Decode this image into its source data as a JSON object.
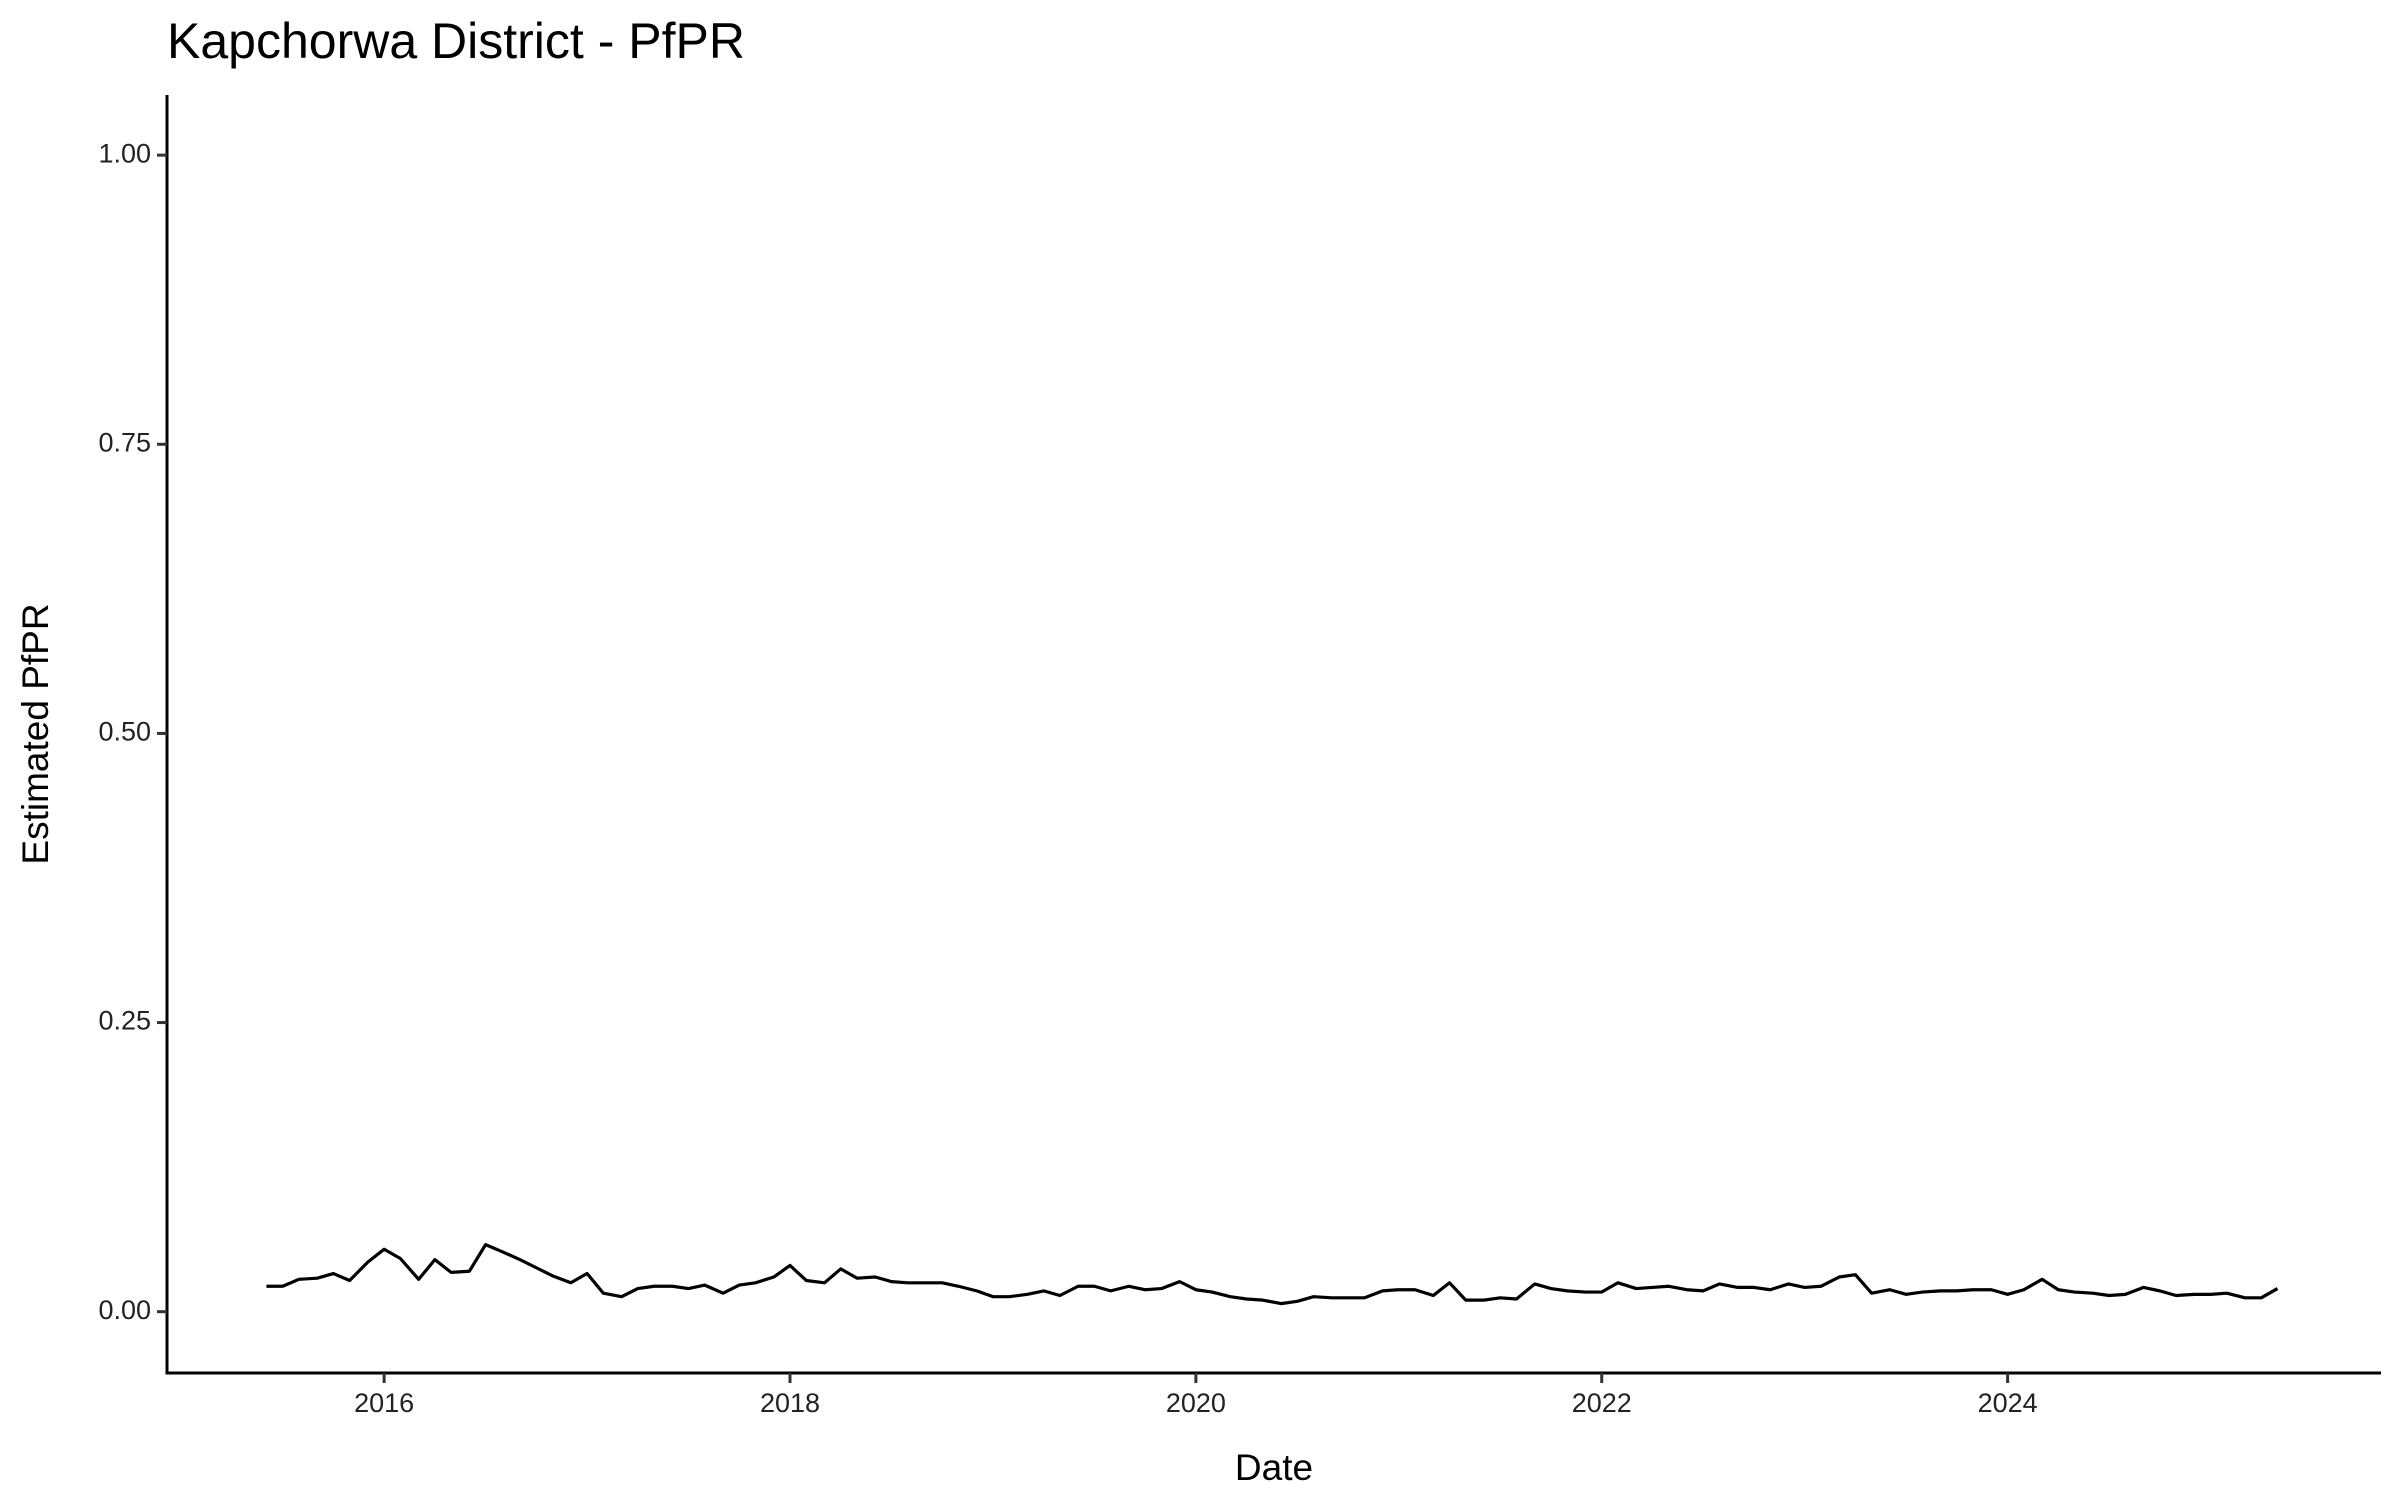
{
  "chart_data": {
    "type": "line",
    "title": "Kapchorwa District - PfPR",
    "x_label": "Date",
    "y_label": "Estimated PfPR",
    "xlim": [
      2014.93,
      2025.84
    ],
    "xticks": [
      2016,
      2018,
      2020,
      2022,
      2024
    ],
    "ylim": [
      -0.053,
      1.052
    ],
    "yticks": [
      {
        "value": 0,
        "label": "0.00"
      },
      {
        "value": 0.25,
        "label": "0.25"
      },
      {
        "value": 0.5,
        "label": "0.50"
      },
      {
        "value": 0.75,
        "label": "0.75"
      },
      {
        "value": 1,
        "label": "1.00"
      }
    ],
    "grid": false,
    "series": [
      {
        "color": "#000000",
        "x": [
          2015.42,
          2015.5,
          2015.58,
          2015.67,
          2015.75,
          2015.83,
          2015.92,
          2016,
          2016.08,
          2016.17,
          2016.25,
          2016.33,
          2016.42,
          2016.5,
          2016.58,
          2016.67,
          2016.75,
          2016.83,
          2016.92,
          2017,
          2017.08,
          2017.17,
          2017.25,
          2017.33,
          2017.42,
          2017.5,
          2017.58,
          2017.67,
          2017.75,
          2017.83,
          2017.92,
          2018,
          2018.08,
          2018.17,
          2018.25,
          2018.33,
          2018.42,
          2018.5,
          2018.58,
          2018.67,
          2018.75,
          2018.83,
          2018.92,
          2019,
          2019.08,
          2019.17,
          2019.25,
          2019.33,
          2019.42,
          2019.5,
          2019.58,
          2019.67,
          2019.75,
          2019.83,
          2019.92,
          2020,
          2020.08,
          2020.17,
          2020.25,
          2020.33,
          2020.42,
          2020.5,
          2020.58,
          2020.67,
          2020.75,
          2020.83,
          2020.92,
          2021,
          2021.08,
          2021.17,
          2021.25,
          2021.33,
          2021.42,
          2021.5,
          2021.58,
          2021.67,
          2021.75,
          2021.83,
          2021.92,
          2022,
          2022.08,
          2022.17,
          2022.25,
          2022.33,
          2022.42,
          2022.5,
          2022.58,
          2022.67,
          2022.75,
          2022.83,
          2022.92,
          2023,
          2023.08,
          2023.17,
          2023.25,
          2023.33,
          2023.42,
          2023.5,
          2023.58,
          2023.67,
          2023.75,
          2023.83,
          2023.92,
          2024,
          2024.08,
          2024.17,
          2024.25,
          2024.33,
          2024.42,
          2024.5,
          2024.58,
          2024.67,
          2024.75,
          2024.83,
          2024.92,
          2025,
          2025.08,
          2025.17,
          2025.25,
          2025.33
        ],
        "values": [
          0.022,
          0.022,
          0.028,
          0.029,
          0.033,
          0.027,
          0.043,
          0.054,
          0.046,
          0.028,
          0.045,
          0.034,
          0.035,
          0.058,
          0.052,
          0.045,
          0.038,
          0.031,
          0.025,
          0.033,
          0.016,
          0.013,
          0.02,
          0.022,
          0.022,
          0.02,
          0.023,
          0.016,
          0.023,
          0.025,
          0.03,
          0.04,
          0.027,
          0.025,
          0.037,
          0.029,
          0.03,
          0.026,
          0.025,
          0.025,
          0.025,
          0.022,
          0.018,
          0.013,
          0.013,
          0.015,
          0.018,
          0.014,
          0.022,
          0.022,
          0.018,
          0.022,
          0.019,
          0.02,
          0.026,
          0.019,
          0.017,
          0.013,
          0.011,
          0.01,
          0.007,
          0.009,
          0.013,
          0.012,
          0.012,
          0.012,
          0.018,
          0.019,
          0.019,
          0.014,
          0.025,
          0.01,
          0.01,
          0.012,
          0.011,
          0.024,
          0.02,
          0.018,
          0.017,
          0.017,
          0.025,
          0.02,
          0.021,
          0.022,
          0.019,
          0.018,
          0.024,
          0.021,
          0.021,
          0.019,
          0.024,
          0.021,
          0.022,
          0.03,
          0.032,
          0.016,
          0.019,
          0.015,
          0.017,
          0.018,
          0.018,
          0.019,
          0.019,
          0.015,
          0.019,
          0.028,
          0.019,
          0.017,
          0.016,
          0.014,
          0.015,
          0.021,
          0.018,
          0.014,
          0.015,
          0.015,
          0.016,
          0.012,
          0.012,
          0.02
        ]
      }
    ]
  }
}
